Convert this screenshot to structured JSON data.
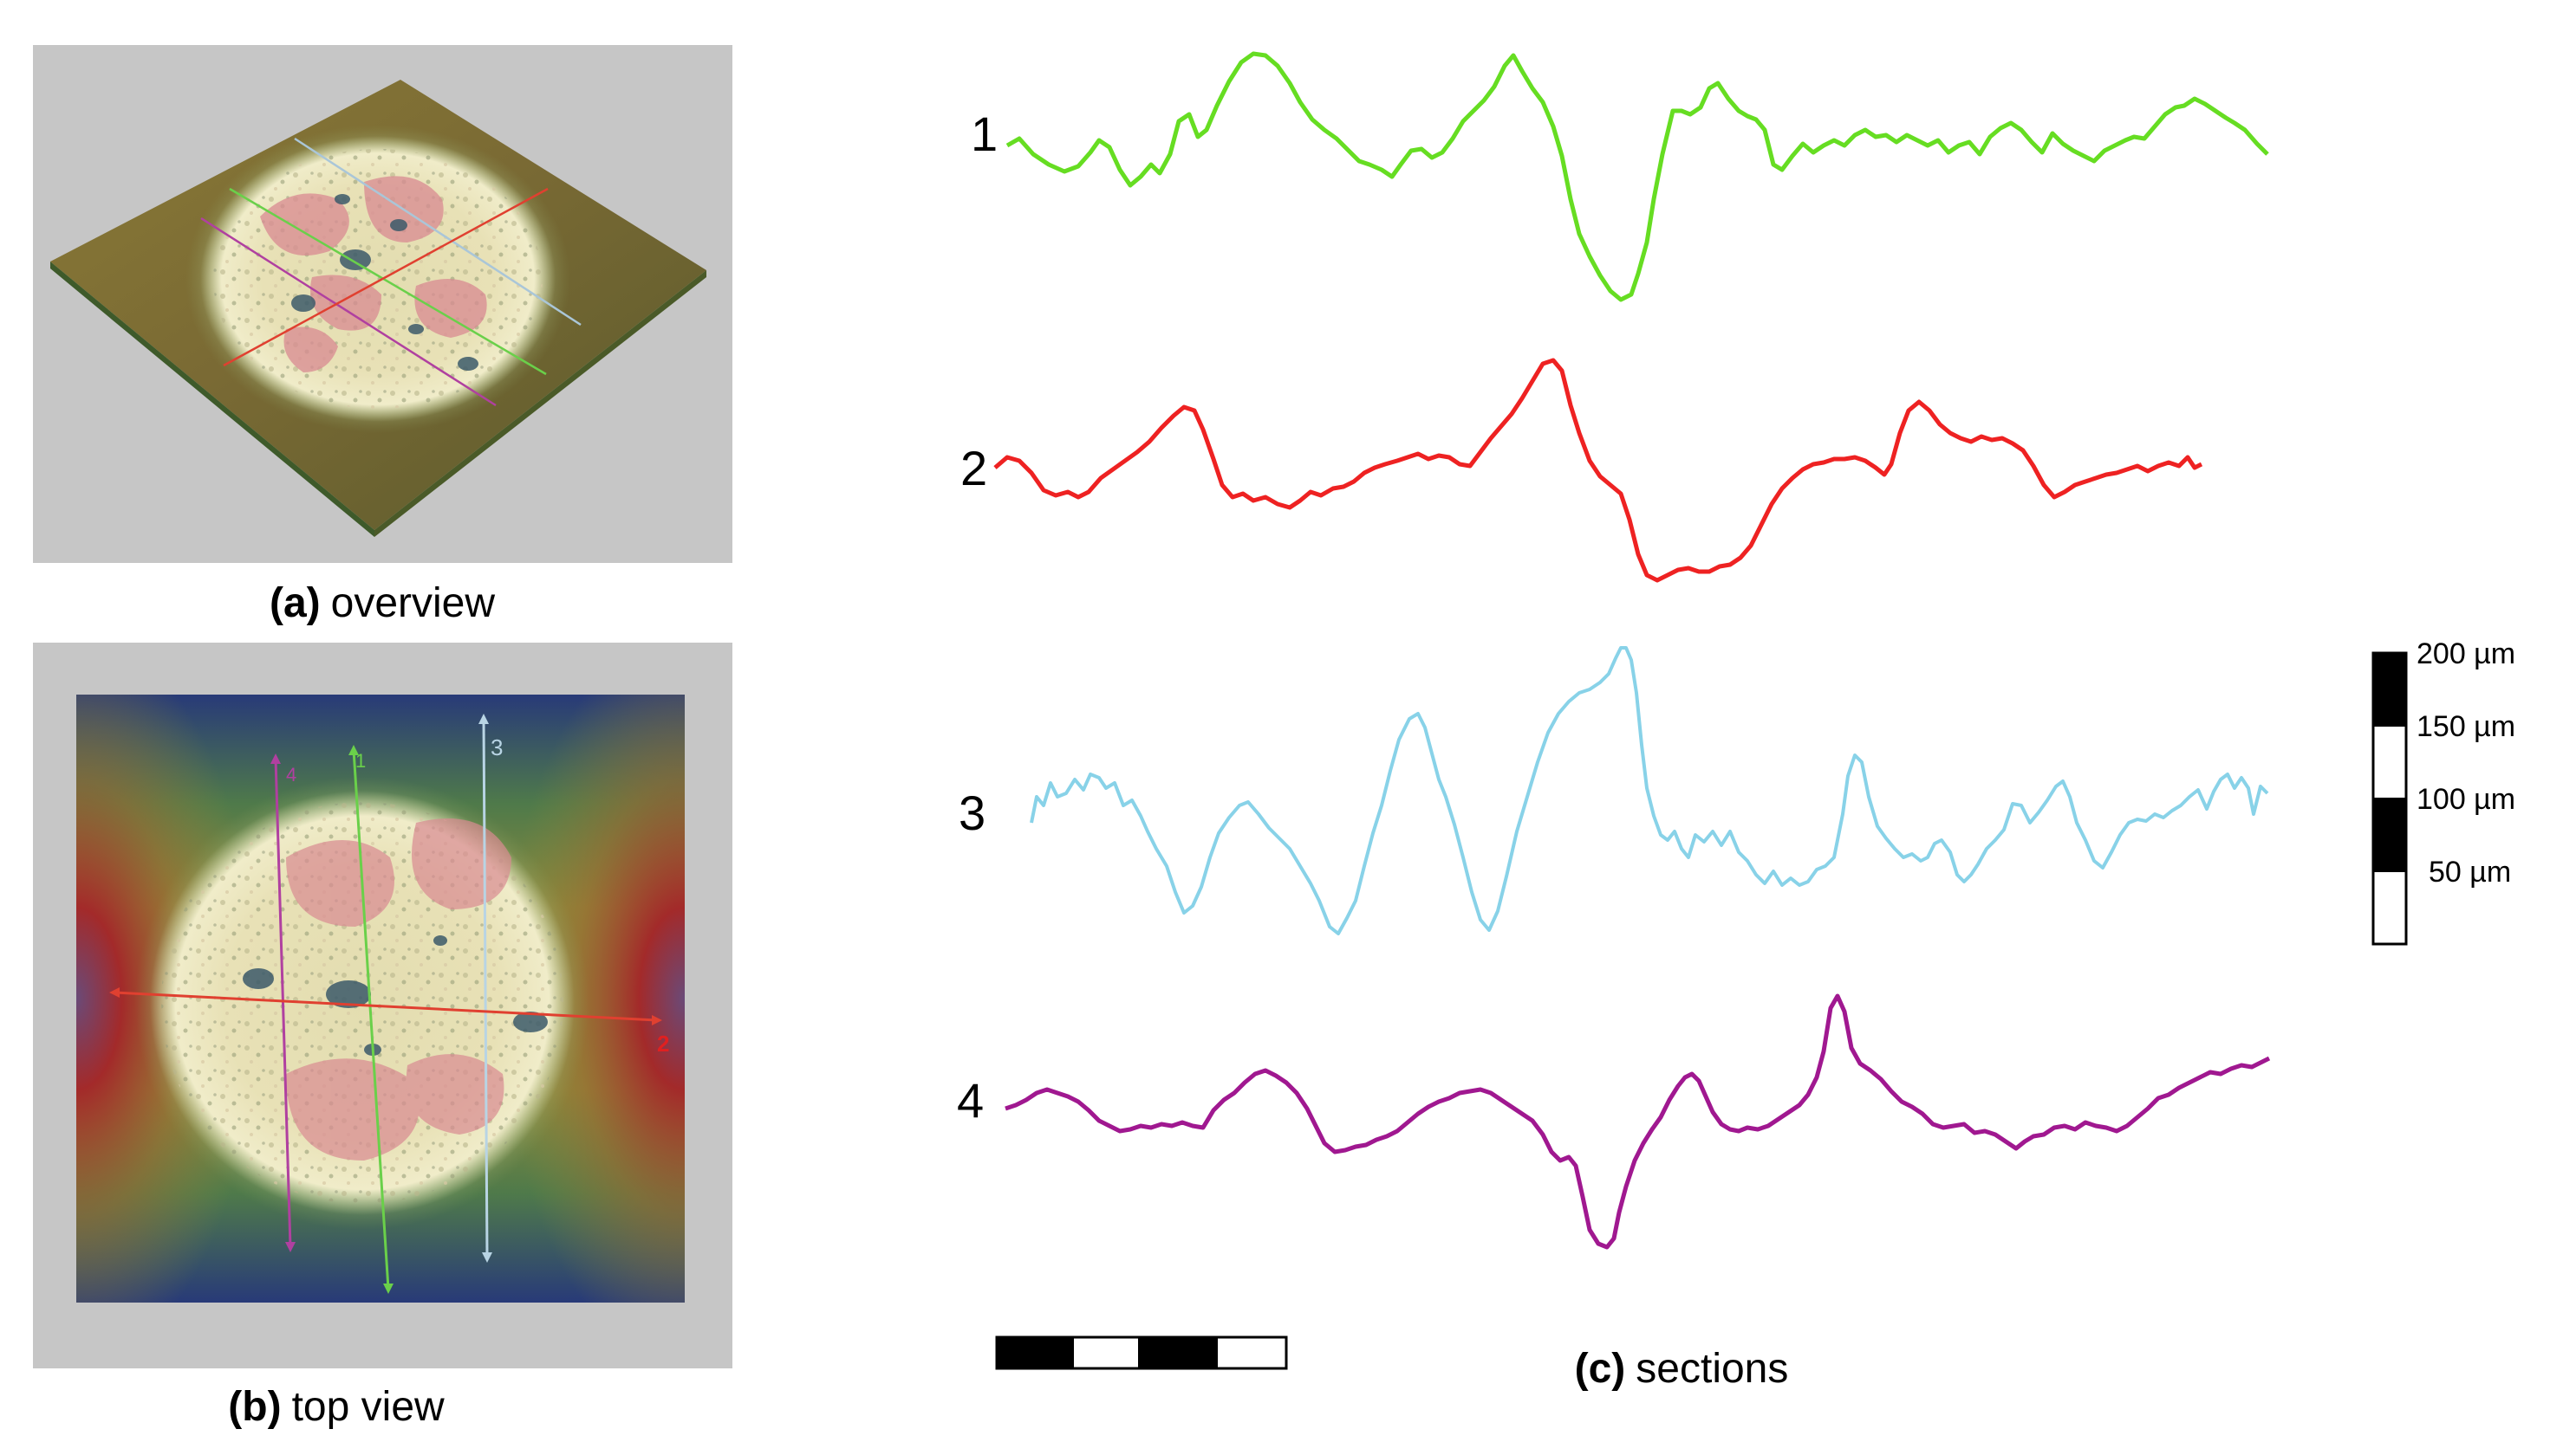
{
  "panels": {
    "a": {
      "letter": "(a)",
      "text": "overview"
    },
    "b": {
      "letter": "(b)",
      "text": "top view"
    },
    "c": {
      "letter": "(c)",
      "text": "sections"
    }
  },
  "top_view_markers": [
    "4",
    "1",
    "3",
    "2"
  ],
  "sections": [
    {
      "label": "1",
      "color": "#66dd22"
    },
    {
      "label": "2",
      "color": "#ee2222"
    },
    {
      "label": "3",
      "color": "#88d2e8"
    },
    {
      "label": "4",
      "color": "#a01890"
    }
  ],
  "vertical_scale": {
    "labels": [
      "200 µm",
      "150 µm",
      "100 µm",
      "50 µm"
    ]
  },
  "colors": {
    "panel_gray": "#c6c6c6",
    "surface_red": "#b03a2e",
    "surface_green": "#6e8e3a",
    "surface_blue": "#2a3d7a",
    "spot_center": "#e7e2b4"
  }
}
